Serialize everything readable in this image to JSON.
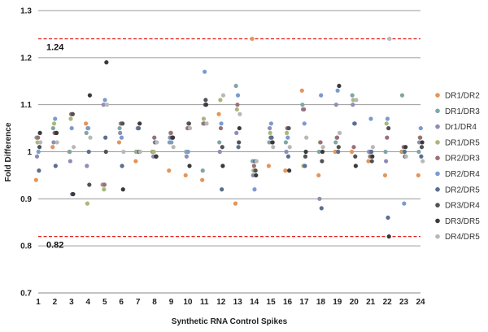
{
  "chart_data": {
    "type": "scatter",
    "xlabel": "Synthetic RNA Control Spikes",
    "ylabel": "Fold Difference",
    "xlim": [
      1,
      24
    ],
    "ylim": [
      0.7,
      1.3
    ],
    "yticks": [
      "0.7",
      "0.8",
      "0.9",
      "1",
      "1.1",
      "1.2",
      "1.3"
    ],
    "xticks": [
      "1",
      "2",
      "3",
      "4",
      "5",
      "6",
      "7",
      "8",
      "9",
      "10",
      "11",
      "12",
      "13",
      "14",
      "15",
      "16",
      "17",
      "18",
      "19",
      "20",
      "21",
      "22",
      "23",
      "24"
    ],
    "grid": true,
    "legend_position": "right",
    "thresholds": [
      {
        "value": 1.24,
        "label": "1.24",
        "color": "#e0211d"
      },
      {
        "value": 0.82,
        "label": "0.82",
        "color": "#e0211d"
      }
    ],
    "series": [
      {
        "name": "DR1/DR2",
        "color": "#e3955a",
        "values": [
          0.94,
          1.01,
          1.0,
          1.06,
          0.93,
          1.02,
          0.98,
          1.0,
          0.96,
          0.95,
          0.94,
          1.08,
          0.89,
          1.24,
          0.97,
          0.96,
          1.13,
          0.95,
          1.0,
          1.0,
          0.98,
          0.95,
          1.0,
          0.95
        ]
      },
      {
        "name": "DR1/DR3",
        "color": "#7fa6a6",
        "values": [
          1.03,
          1.05,
          1.0,
          1.04,
          0.93,
          1.05,
          1.0,
          1.0,
          1.02,
          1.0,
          0.96,
          1.02,
          1.14,
          0.98,
          1.02,
          1.02,
          1.1,
          1.0,
          1.02,
          1.12,
          1.0,
          1.0,
          1.12,
          1.0
        ]
      },
      {
        "name": "Dr1/DR4",
        "color": "#8e8db5",
        "values": [
          0.99,
          1.02,
          0.98,
          0.97,
          1.1,
          1.04,
          1.0,
          0.99,
          1.03,
          0.99,
          1.06,
          1.0,
          1.04,
          0.95,
          1.05,
          1.0,
          1.09,
          0.9,
          1.1,
          1.1,
          1.0,
          0.98,
          1.0,
          1.02
        ]
      },
      {
        "name": "DR1/DR5",
        "color": "#a8b87a",
        "values": [
          1.02,
          1.06,
          1.07,
          0.89,
          0.92,
          1.06,
          1.0,
          1.0,
          1.04,
          1.0,
          1.07,
          1.11,
          1.09,
          0.96,
          1.04,
          1.04,
          0.97,
          1.02,
          1.03,
          1.11,
          0.99,
          1.06,
          1.0,
          1.03
        ]
      },
      {
        "name": "DR2/DR3",
        "color": "#9c6f78",
        "values": [
          1.03,
          1.04,
          1.08,
          1.05,
          0.93,
          1.06,
          1.05,
          1.03,
          1.04,
          1.05,
          1.06,
          1.05,
          1.1,
          0.97,
          1.03,
          1.05,
          1.09,
          1.02,
          1.03,
          1.01,
          0.99,
          1.03,
          1.01,
          1.03
        ]
      },
      {
        "name": "DR2/DR4",
        "color": "#7b9ad0",
        "values": [
          1.0,
          1.07,
          1.05,
          1.05,
          1.11,
          1.03,
          1.05,
          1.02,
          1.02,
          1.0,
          1.17,
          1.06,
          1.12,
          0.92,
          1.06,
          1.03,
          1.06,
          1.12,
          1.13,
          1.06,
          1.07,
          1.07,
          0.89,
          1.05
        ]
      },
      {
        "name": "DR2/DR5",
        "color": "#5b6e8c",
        "values": [
          0.96,
          0.97,
          0.91,
          1.0,
          1.03,
          0.97,
          1.05,
          1.02,
          1.03,
          1.06,
          1.1,
          0.92,
          1.01,
          0.98,
          1.03,
          0.99,
          0.97,
          0.88,
          1.0,
          1.06,
          1.0,
          0.86,
          1.0,
          0.99
        ]
      },
      {
        "name": "DR3/DR4",
        "color": "#525252",
        "values": [
          1.01,
          1.04,
          1.08,
          0.93,
          1.0,
          1.06,
          1.0,
          0.99,
          1.03,
          1.06,
          1.11,
          1.01,
          1.02,
          0.96,
          1.02,
          1.05,
          0.99,
          0.98,
          1.01,
          0.99,
          0.98,
          1.05,
          0.99,
          1.01
        ]
      },
      {
        "name": "DR3/DR5",
        "color": "#3a3a3a",
        "values": [
          1.04,
          1.04,
          0.91,
          1.12,
          1.19,
          0.92,
          1.06,
          0.99,
          1.03,
          0.97,
          1.1,
          0.97,
          1.05,
          0.95,
          1.02,
          0.96,
          1.0,
          1.0,
          1.14,
          0.97,
          0.99,
          0.82,
          1.01,
          1.02
        ]
      },
      {
        "name": "DR4/DR5",
        "color": "#b8b8b8",
        "values": [
          1.02,
          1.02,
          1.01,
          1.03,
          1.1,
          1.0,
          1.0,
          1.02,
          1.01,
          1.05,
          1.06,
          1.12,
          1.08,
          0.98,
          1.01,
          1.01,
          1.03,
          1.01,
          1.04,
          1.11,
          1.01,
          1.24,
          0.99,
          0.98
        ]
      }
    ]
  }
}
